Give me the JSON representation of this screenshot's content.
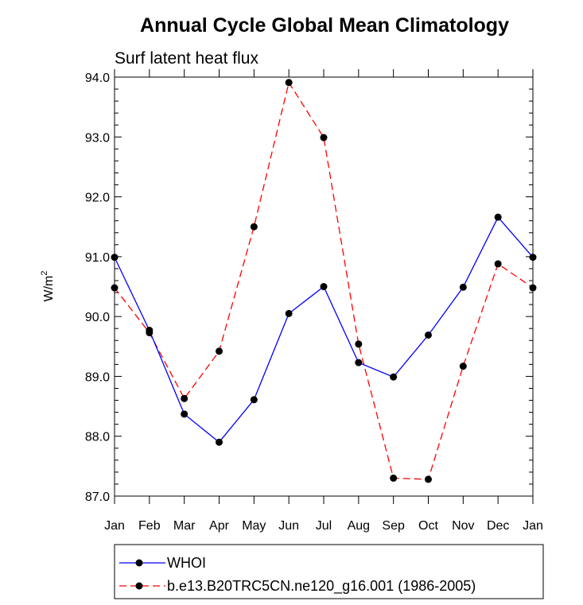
{
  "chart_data": {
    "type": "line",
    "title": "Annual Cycle Global Mean Climatology",
    "subtitle": "Surf latent heat flux",
    "ylabel": "W/m",
    "ylabel_superscript": "2",
    "xlabel": "",
    "ylim": [
      87.0,
      94.0
    ],
    "y_ticks": [
      "87.0",
      "88.0",
      "89.0",
      "90.0",
      "91.0",
      "92.0",
      "93.0",
      "94.0"
    ],
    "categories": [
      "Jan",
      "Feb",
      "Mar",
      "Apr",
      "May",
      "Jun",
      "Jul",
      "Aug",
      "Sep",
      "Oct",
      "Nov",
      "Dec",
      "Jan"
    ],
    "grid": false,
    "legend_position": "bottom",
    "series": [
      {
        "name": "WHOI",
        "color": "#0000ff",
        "style": "solid",
        "values": [
          90.99,
          89.77,
          88.37,
          87.9,
          88.61,
          90.05,
          90.5,
          89.23,
          88.99,
          89.69,
          90.49,
          91.66,
          90.99
        ]
      },
      {
        "name": "b.e13.B20TRC5CN.ne120_g16.001 (1986-2005)",
        "color": "#ff0000",
        "style": "dashed",
        "values": [
          90.48,
          89.73,
          88.63,
          89.42,
          91.5,
          93.91,
          92.99,
          89.54,
          87.3,
          87.28,
          89.17,
          90.88,
          90.48
        ]
      }
    ]
  }
}
